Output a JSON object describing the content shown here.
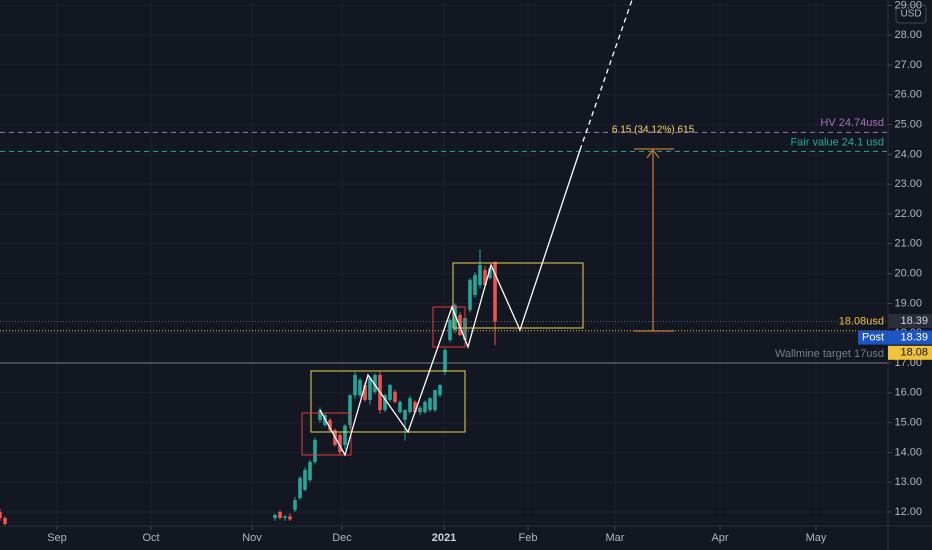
{
  "chart_data": {
    "type": "candlestick",
    "currency": "USD",
    "x": [
      0,
      1,
      55,
      56,
      57,
      58,
      59,
      60,
      61,
      62,
      63,
      64,
      65,
      66,
      67,
      68,
      69,
      70,
      71,
      72,
      73,
      74,
      75,
      76,
      77,
      78,
      79,
      80,
      81,
      82,
      83,
      84,
      85,
      86,
      87,
      88,
      89,
      90,
      91,
      92,
      93,
      94,
      95,
      96,
      97,
      98,
      99
    ],
    "open": [
      12.0,
      11.8,
      11.8,
      12.0,
      11.8,
      11.85,
      12.07,
      12.47,
      12.74,
      13.07,
      13.68,
      15.09,
      14.92,
      15.09,
      14.75,
      14.58,
      14.25,
      14.92,
      15.92,
      15.92,
      16.26,
      15.76,
      16.03,
      16.6,
      15.42,
      15.76,
      16.03,
      15.35,
      15.09,
      15.35,
      15.69,
      15.35,
      15.35,
      15.42,
      15.42,
      15.92,
      16.7,
      17.77,
      18.11,
      18.61,
      17.77,
      18.78,
      19.28,
      19.61,
      20.12,
      19.85,
      20.39
    ],
    "high": [
      12.1,
      11.85,
      11.95,
      12.05,
      11.9,
      11.95,
      12.5,
      13.2,
      13.5,
      13.75,
      14.5,
      15.5,
      15.3,
      15.15,
      14.8,
      14.65,
      14.95,
      15.95,
      16.7,
      16.5,
      16.35,
      16.55,
      16.65,
      16.7,
      15.95,
      16.3,
      16.1,
      15.75,
      15.45,
      15.9,
      15.75,
      15.55,
      15.75,
      15.85,
      16.1,
      16.3,
      17.5,
      18.5,
      19.0,
      18.7,
      18.55,
      19.85,
      20.05,
      20.8,
      20.25,
      20.2,
      20.4
    ],
    "low": [
      11.7,
      11.55,
      11.7,
      11.75,
      11.7,
      11.7,
      12.0,
      12.4,
      12.7,
      13.0,
      13.6,
      15.0,
      14.85,
      14.7,
      14.2,
      13.9,
      14.1,
      14.8,
      15.8,
      15.85,
      15.7,
      15.6,
      15.95,
      15.3,
      15.35,
      15.7,
      15.65,
      15.3,
      14.4,
      15.3,
      15.3,
      15.25,
      15.3,
      15.35,
      15.35,
      15.85,
      16.6,
      17.7,
      18.0,
      17.9,
      17.6,
      18.7,
      19.2,
      19.5,
      19.6,
      19.8,
      17.6
    ],
    "close": [
      11.8,
      11.6,
      11.9,
      11.8,
      11.85,
      11.75,
      12.4,
      13.14,
      13.41,
      13.68,
      14.42,
      15.42,
      15.25,
      14.75,
      14.25,
      14.01,
      14.9,
      15.92,
      16.6,
      16.43,
      15.76,
      16.5,
      16.6,
      15.42,
      15.92,
      16.26,
      15.69,
      15.69,
      15.42,
      15.82,
      15.35,
      15.5,
      15.69,
      15.82,
      16.09,
      16.26,
      17.43,
      18.44,
      18.94,
      17.94,
      18.51,
      19.78,
      19.95,
      20.29,
      19.61,
      20.18,
      18.39
    ],
    "up_color": "#26a69a",
    "down_color": "#ef5350",
    "xlim": [
      0,
      177.6
    ],
    "ylim": [
      11.53,
      29.18
    ],
    "xticks": [
      {
        "value": 11.4,
        "label": "Sep"
      },
      {
        "value": 30.2,
        "label": "Oct"
      },
      {
        "value": 50.4,
        "label": "Nov"
      },
      {
        "value": 68.4,
        "label": "Dec"
      },
      {
        "value": 88.8,
        "label": "2021"
      },
      {
        "value": 105.6,
        "label": "Feb"
      },
      {
        "value": 123,
        "label": "Mar"
      },
      {
        "value": 144,
        "label": "Apr"
      },
      {
        "value": 163.2,
        "label": "May"
      }
    ],
    "yticks": [
      {
        "value": 12,
        "label": "12.00"
      },
      {
        "value": 13,
        "label": "13.00"
      },
      {
        "value": 14,
        "label": "14.00"
      },
      {
        "value": 15,
        "label": "15.00"
      },
      {
        "value": 16,
        "label": "16.00"
      },
      {
        "value": 17,
        "label": "17.00"
      },
      {
        "value": 18,
        "label": "18.00"
      },
      {
        "value": 19,
        "label": "19.00"
      },
      {
        "value": 20,
        "label": "20.00"
      },
      {
        "value": 21,
        "label": "21.00"
      },
      {
        "value": 22,
        "label": "22.00"
      },
      {
        "value": 23,
        "label": "23.00"
      },
      {
        "value": 24,
        "label": "24.00"
      },
      {
        "value": 25,
        "label": "25.00"
      },
      {
        "value": 26,
        "label": "26.00"
      },
      {
        "value": 27,
        "label": "27.00"
      },
      {
        "value": 28,
        "label": "28.00"
      },
      {
        "value": 29,
        "label": "29.00"
      }
    ],
    "levels": [
      {
        "name": "HV 24.74usd",
        "value": 24.74,
        "color": "#a86fc0",
        "style": "dashed"
      },
      {
        "name": "Fair value 24.1 usd",
        "value": 24.1,
        "color": "#22ab94",
        "style": "dashed"
      },
      {
        "name": "18.08usd",
        "value": 18.08,
        "color": "#f0c23b",
        "style": "dotted"
      },
      {
        "name": "Wallmine target 17usd",
        "value": 17,
        "color": "#787b86",
        "style": "solid"
      }
    ],
    "last_price": 18.39,
    "post": {
      "label": "Post",
      "value": 18.39
    },
    "measure_label": "6.15 (34.12%) 615"
  }
}
